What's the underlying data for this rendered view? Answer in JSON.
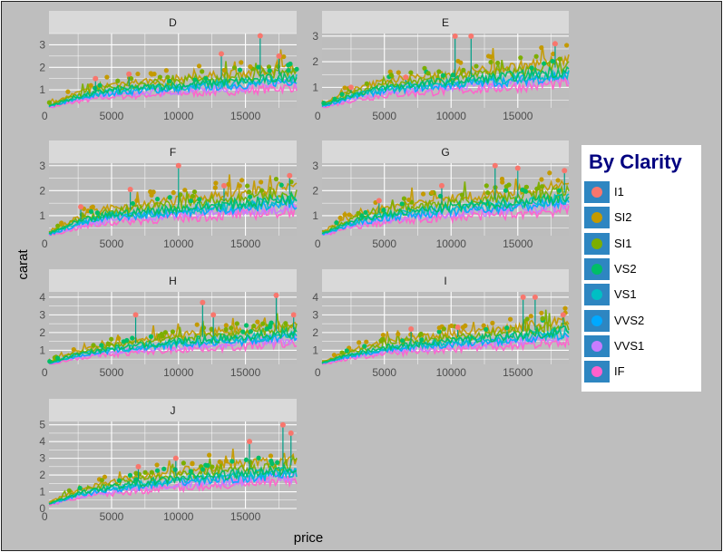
{
  "chart_data": {
    "type": "line",
    "layout": "facet-wrap",
    "xlabel": "price",
    "ylabel": "carat",
    "legend": {
      "title": "By Clarity",
      "placement": "right",
      "entries": [
        {
          "name": "I1",
          "color": "#F8766D"
        },
        {
          "name": "SI2",
          "color": "#C49A00"
        },
        {
          "name": "SI1",
          "color": "#7CAE00"
        },
        {
          "name": "VS2",
          "color": "#00BE67"
        },
        {
          "name": "VS1",
          "color": "#00BFC4"
        },
        {
          "name": "VVS2",
          "color": "#00A9FF"
        },
        {
          "name": "VVS1",
          "color": "#C77CFF"
        },
        {
          "name": "IF",
          "color": "#FF61CC"
        }
      ]
    },
    "xlim": [
      326,
      18823
    ],
    "x_ticks": [
      0,
      5000,
      10000,
      15000
    ],
    "grid": true,
    "panels": [
      {
        "facet": "D",
        "ylim": [
          0.2,
          3.5
        ],
        "y_ticks": [
          1,
          2,
          3
        ],
        "trend": [
          [
            400,
            0.3
          ],
          [
            2500,
            0.7
          ],
          [
            5000,
            1.0
          ],
          [
            10000,
            1.2
          ],
          [
            15000,
            1.4
          ],
          [
            18500,
            1.6
          ]
        ],
        "peaks": [
          [
            3800,
            1.5
          ],
          [
            6300,
            1.7
          ],
          [
            13200,
            2.6
          ],
          [
            16100,
            3.4
          ],
          [
            17500,
            2.5
          ]
        ]
      },
      {
        "facet": "E",
        "ylim": [
          0.2,
          3.1
        ],
        "y_ticks": [
          1,
          2,
          3
        ],
        "trend": [
          [
            400,
            0.3
          ],
          [
            2500,
            0.7
          ],
          [
            5000,
            1.0
          ],
          [
            10000,
            1.25
          ],
          [
            15000,
            1.45
          ],
          [
            18500,
            1.65
          ]
        ],
        "peaks": [
          [
            2500,
            1.0
          ],
          [
            6600,
            1.4
          ],
          [
            10300,
            3.0
          ],
          [
            11500,
            3.0
          ],
          [
            17800,
            2.7
          ]
        ]
      },
      {
        "facet": "F",
        "ylim": [
          0.2,
          3.1
        ],
        "y_ticks": [
          1,
          2,
          3
        ],
        "trend": [
          [
            400,
            0.3
          ],
          [
            2500,
            0.75
          ],
          [
            5000,
            1.05
          ],
          [
            10000,
            1.3
          ],
          [
            15000,
            1.5
          ],
          [
            18500,
            1.7
          ]
        ],
        "peaks": [
          [
            2700,
            1.35
          ],
          [
            6400,
            2.05
          ],
          [
            10000,
            3.0
          ],
          [
            13400,
            2.2
          ],
          [
            18300,
            2.6
          ]
        ]
      },
      {
        "facet": "G",
        "ylim": [
          0.2,
          3.1
        ],
        "y_ticks": [
          1,
          2,
          3
        ],
        "trend": [
          [
            400,
            0.3
          ],
          [
            2500,
            0.75
          ],
          [
            5000,
            1.05
          ],
          [
            10000,
            1.35
          ],
          [
            15000,
            1.55
          ],
          [
            18500,
            1.75
          ]
        ],
        "peaks": [
          [
            4600,
            1.6
          ],
          [
            9300,
            2.2
          ],
          [
            13300,
            3.0
          ],
          [
            15000,
            2.9
          ],
          [
            18500,
            2.8
          ]
        ]
      },
      {
        "facet": "H",
        "ylim": [
          0.2,
          4.3
        ],
        "y_ticks": [
          1,
          2,
          3,
          4
        ],
        "trend": [
          [
            400,
            0.3
          ],
          [
            2500,
            0.8
          ],
          [
            5000,
            1.1
          ],
          [
            10000,
            1.5
          ],
          [
            15000,
            1.75
          ],
          [
            18500,
            2.0
          ]
        ],
        "peaks": [
          [
            6800,
            3.0
          ],
          [
            11800,
            3.7
          ],
          [
            12600,
            3.0
          ],
          [
            17300,
            4.1
          ],
          [
            18600,
            3.0
          ]
        ]
      },
      {
        "facet": "I",
        "ylim": [
          0.2,
          4.3
        ],
        "y_ticks": [
          1,
          2,
          3,
          4
        ],
        "trend": [
          [
            400,
            0.3
          ],
          [
            2500,
            0.8
          ],
          [
            5000,
            1.15
          ],
          [
            10000,
            1.55
          ],
          [
            15000,
            1.85
          ],
          [
            18500,
            2.1
          ]
        ],
        "peaks": [
          [
            7000,
            2.2
          ],
          [
            10500,
            2.3
          ],
          [
            15400,
            4.0
          ],
          [
            16300,
            4.0
          ],
          [
            18400,
            3.0
          ]
        ]
      },
      {
        "facet": "J",
        "ylim": [
          0.0,
          5.2
        ],
        "y_ticks": [
          0,
          1,
          2,
          3,
          4,
          5
        ],
        "trend": [
          [
            400,
            0.3
          ],
          [
            2500,
            0.9
          ],
          [
            5000,
            1.3
          ],
          [
            10000,
            1.8
          ],
          [
            15000,
            2.1
          ],
          [
            18500,
            2.35
          ]
        ],
        "peaks": [
          [
            7000,
            2.5
          ],
          [
            9800,
            3.0
          ],
          [
            15300,
            4.0
          ],
          [
            17800,
            5.0
          ],
          [
            18400,
            4.5
          ]
        ]
      }
    ]
  }
}
